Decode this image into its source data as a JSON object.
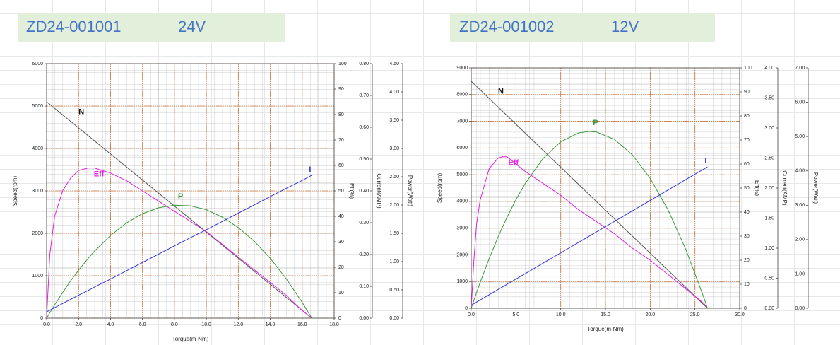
{
  "chart_data": [
    {
      "type": "line",
      "title": "ZD24-001001",
      "subtitle": "24V",
      "xlabel": "Torque(m-Nm)",
      "ylabel": "Speed(rpm)",
      "y2label": "Eff(%)",
      "y3label": "Current(AMP)",
      "y4label": "Power(Watt)",
      "x": [
        0,
        0.2,
        0.5,
        1,
        1.5,
        2,
        2.6,
        3,
        4,
        5,
        6,
        7,
        8,
        9,
        10,
        11,
        12,
        13,
        14,
        15,
        16,
        16.6
      ],
      "xlim": [
        0,
        18
      ],
      "xticks": [
        {
          "value": 0,
          "label": "0.0"
        },
        {
          "value": 2,
          "label": "2.0"
        },
        {
          "value": 4,
          "label": "4.0"
        },
        {
          "value": 6,
          "label": "6.0"
        },
        {
          "value": 8,
          "label": "8.0"
        },
        {
          "value": 10,
          "label": "10.0"
        },
        {
          "value": 12,
          "label": "12.0"
        },
        {
          "value": 14,
          "label": "14.0"
        },
        {
          "value": 16,
          "label": "16.0"
        },
        {
          "value": 18,
          "label": "18.0"
        }
      ],
      "ylim": [
        0,
        6000
      ],
      "yticks": [
        0,
        1000,
        2000,
        3000,
        4000,
        5000,
        6000
      ],
      "y2lim": [
        0,
        100
      ],
      "y2ticks": [
        0,
        10,
        20,
        30,
        40,
        50,
        60,
        70,
        80,
        90,
        100
      ],
      "y3lim": [
        0,
        0.8
      ],
      "y3ticks": [
        {
          "value": 0,
          "label": "0.00"
        },
        {
          "value": 0.1,
          "label": "0.10"
        },
        {
          "value": 0.2,
          "label": "0.20"
        },
        {
          "value": 0.3,
          "label": "0.30"
        },
        {
          "value": 0.4,
          "label": "0.40"
        },
        {
          "value": 0.5,
          "label": "0.50"
        },
        {
          "value": 0.6,
          "label": "0.60"
        },
        {
          "value": 0.7,
          "label": "0.70"
        },
        {
          "value": 0.8,
          "label": "0.80"
        }
      ],
      "y4lim": [
        0,
        4.5
      ],
      "y4ticks": [
        {
          "value": 0,
          "label": "0.00"
        },
        {
          "value": 0.5,
          "label": "0.50"
        },
        {
          "value": 1,
          "label": "1.00"
        },
        {
          "value": 1.5,
          "label": "1.50"
        },
        {
          "value": 2,
          "label": "2.00"
        },
        {
          "value": 2.5,
          "label": "2.50"
        },
        {
          "value": 3,
          "label": "3.00"
        },
        {
          "value": 3.5,
          "label": "3.50"
        },
        {
          "value": 4,
          "label": "4.00"
        },
        {
          "value": 4.5,
          "label": "4.50"
        }
      ],
      "grid": true,
      "series": [
        {
          "name": "N",
          "color": "#555555",
          "axis": "y",
          "values": [
            5100,
            5039,
            4946,
            4793,
            4639,
            4486,
            4301,
            4178,
            3871,
            3564,
            3257,
            2949,
            2642,
            2335,
            2028,
            1720,
            1413,
            1106,
            799,
            492,
            184,
            0
          ]
        },
        {
          "name": "Eff",
          "color": "#e020e0",
          "axis": "y2",
          "values": [
            0,
            25,
            40,
            50,
            55,
            58,
            59,
            59,
            57,
            54,
            50,
            46,
            42,
            38,
            34,
            29,
            24,
            19,
            14,
            9,
            3,
            0
          ]
        },
        {
          "name": "P",
          "color": "#3a9a3a",
          "axis": "y4",
          "values": [
            0,
            0.095,
            0.234,
            0.453,
            0.658,
            0.848,
            1.057,
            1.184,
            1.463,
            1.684,
            1.847,
            1.951,
            1.997,
            1.986,
            1.917,
            1.786,
            1.601,
            1.359,
            1.057,
            0.697,
            0.279,
            0
          ]
        },
        {
          "name": "I",
          "color": "#3333dd",
          "axis": "y3",
          "values": [
            0.02,
            0.025,
            0.033,
            0.046,
            0.059,
            0.072,
            0.087,
            0.098,
            0.123,
            0.149,
            0.175,
            0.201,
            0.227,
            0.253,
            0.278,
            0.304,
            0.33,
            0.356,
            0.382,
            0.408,
            0.433,
            0.449
          ]
        }
      ]
    },
    {
      "type": "line",
      "title": "ZD24-001002",
      "subtitle": "12V",
      "xlabel": "Torque(m-Nm)",
      "ylabel": "Speed(rpm)",
      "y2label": "Eff(%)",
      "y3label": "Current(AMP)",
      "y4label": "Power(Watt)",
      "x": [
        0,
        0.3,
        0.6,
        1,
        2,
        3,
        3.5,
        4,
        5,
        6,
        8,
        10,
        12,
        13.2,
        14,
        16,
        18,
        20,
        22,
        24,
        26,
        26.4
      ],
      "xlim": [
        0,
        30
      ],
      "xticks": [
        {
          "value": 0,
          "label": "0.0"
        },
        {
          "value": 5,
          "label": "5.0"
        },
        {
          "value": 10,
          "label": "10.0"
        },
        {
          "value": 15,
          "label": "15.0"
        },
        {
          "value": 20,
          "label": "20.0"
        },
        {
          "value": 25,
          "label": "25.0"
        },
        {
          "value": 30,
          "label": "30.0"
        }
      ],
      "ylim": [
        0,
        9000
      ],
      "yticks": [
        0,
        1000,
        2000,
        3000,
        4000,
        5000,
        6000,
        7000,
        8000,
        9000
      ],
      "y2lim": [
        0,
        100
      ],
      "y2ticks": [
        0,
        10,
        20,
        30,
        40,
        50,
        60,
        70,
        80,
        90,
        100
      ],
      "y3lim": [
        0,
        4
      ],
      "y3ticks": [
        {
          "value": 0,
          "label": "0.00"
        },
        {
          "value": 0.5,
          "label": "0.50"
        },
        {
          "value": 1,
          "label": "1.00"
        },
        {
          "value": 1.5,
          "label": "1.50"
        },
        {
          "value": 2,
          "label": "2.00"
        },
        {
          "value": 2.5,
          "label": "2.50"
        },
        {
          "value": 3,
          "label": "3.00"
        },
        {
          "value": 3.5,
          "label": "3.50"
        },
        {
          "value": 4,
          "label": "4.00"
        }
      ],
      "y4lim": [
        0,
        7
      ],
      "y4ticks": [
        {
          "value": 0,
          "label": "0.00"
        },
        {
          "value": 1,
          "label": "1.00"
        },
        {
          "value": 2,
          "label": "2.00"
        },
        {
          "value": 3,
          "label": "3.00"
        },
        {
          "value": 4,
          "label": "4.00"
        },
        {
          "value": 5,
          "label": "5.00"
        },
        {
          "value": 6,
          "label": "6.00"
        },
        {
          "value": 7,
          "label": "7.00"
        }
      ],
      "grid": true,
      "series": [
        {
          "name": "N",
          "color": "#555555",
          "axis": "y",
          "values": [
            8500,
            8403,
            8307,
            8178,
            7856,
            7534,
            7373,
            7212,
            6890,
            6568,
            5924,
            5280,
            4636,
            4250,
            3992,
            3348,
            2705,
            2061,
            1417,
            773,
            129,
            0
          ]
        },
        {
          "name": "Eff",
          "color": "#e020e0",
          "axis": "y2",
          "values": [
            0,
            20,
            35,
            45,
            58,
            62.5,
            63,
            63,
            60,
            57,
            52,
            47,
            41,
            38,
            36,
            31,
            25,
            20,
            14,
            8,
            2,
            0
          ]
        },
        {
          "name": "P",
          "color": "#3a9a3a",
          "axis": "y4",
          "values": [
            0,
            0.231,
            0.458,
            0.751,
            1.442,
            2.074,
            2.369,
            2.648,
            3.163,
            3.618,
            4.351,
            4.847,
            5.107,
            5.15,
            5.131,
            4.918,
            4.469,
            3.783,
            2.862,
            1.702,
            0.308,
            0
          ]
        },
        {
          "name": "I",
          "color": "#3333dd",
          "axis": "y3",
          "values": [
            0.05,
            0.076,
            0.102,
            0.137,
            0.224,
            0.312,
            0.355,
            0.399,
            0.486,
            0.573,
            0.748,
            0.922,
            1.096,
            1.201,
            1.271,
            1.445,
            1.62,
            1.794,
            1.968,
            2.143,
            2.317,
            2.352
          ]
        }
      ]
    }
  ]
}
